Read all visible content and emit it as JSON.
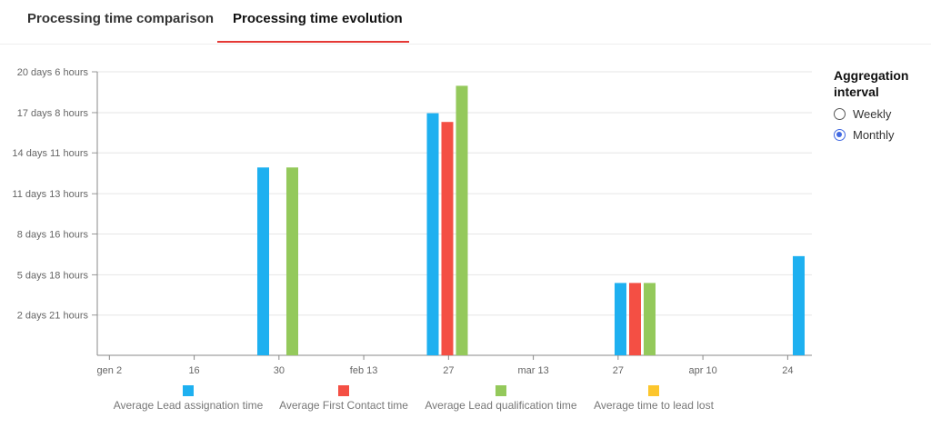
{
  "tabs": [
    {
      "label": "Processing time comparison",
      "active": false
    },
    {
      "label": "Processing time evolution",
      "active": true
    }
  ],
  "aggregation": {
    "title": "Aggregation interval",
    "options": [
      {
        "label": "Weekly",
        "selected": false
      },
      {
        "label": "Monthly",
        "selected": true
      }
    ]
  },
  "chart_data": {
    "type": "bar",
    "y_unit": "hours",
    "y_ticks": [
      {
        "label": "2 days 21 hours",
        "value": 69
      },
      {
        "label": "5 days 18 hours",
        "value": 138
      },
      {
        "label": "8 days 16 hours",
        "value": 208
      },
      {
        "label": "11 days 13 hours",
        "value": 277
      },
      {
        "label": "14 days 11 hours",
        "value": 347
      },
      {
        "label": "17 days 8 hours",
        "value": 416
      },
      {
        "label": "20 days 6 hours",
        "value": 486
      }
    ],
    "ylim": [
      0,
      486
    ],
    "x_ticks": [
      {
        "label": "gen 2",
        "date": "2023-01-02"
      },
      {
        "label": "16",
        "date": "2023-01-16"
      },
      {
        "label": "30",
        "date": "2023-01-30"
      },
      {
        "label": "feb 13",
        "date": "2023-02-13"
      },
      {
        "label": "27",
        "date": "2023-02-27"
      },
      {
        "label": "mar 13",
        "date": "2023-03-13"
      },
      {
        "label": "27",
        "date": "2023-03-27"
      },
      {
        "label": "apr 10",
        "date": "2023-04-10"
      },
      {
        "label": "24",
        "date": "2023-04-24"
      }
    ],
    "xlim": [
      "2022-12-31",
      "2023-04-28"
    ],
    "x": [
      "2023-01-31",
      "2023-02-28",
      "2023-03-31",
      "2023-04-30"
    ],
    "series": [
      {
        "name": "Average Lead assignation time",
        "color": "#1eb0f0",
        "values": [
          322,
          415,
          124,
          170
        ]
      },
      {
        "name": "Average First Contact time",
        "color": "#f44f44",
        "values": [
          null,
          400,
          124,
          null
        ]
      },
      {
        "name": "Average Lead qualification time",
        "color": "#94c95b",
        "values": [
          322,
          462,
          124,
          null
        ]
      },
      {
        "name": "Average time to lead lost",
        "color": "#fcc62d",
        "values": [
          null,
          null,
          null,
          null
        ]
      }
    ],
    "grid": true,
    "legend": "bottom"
  }
}
